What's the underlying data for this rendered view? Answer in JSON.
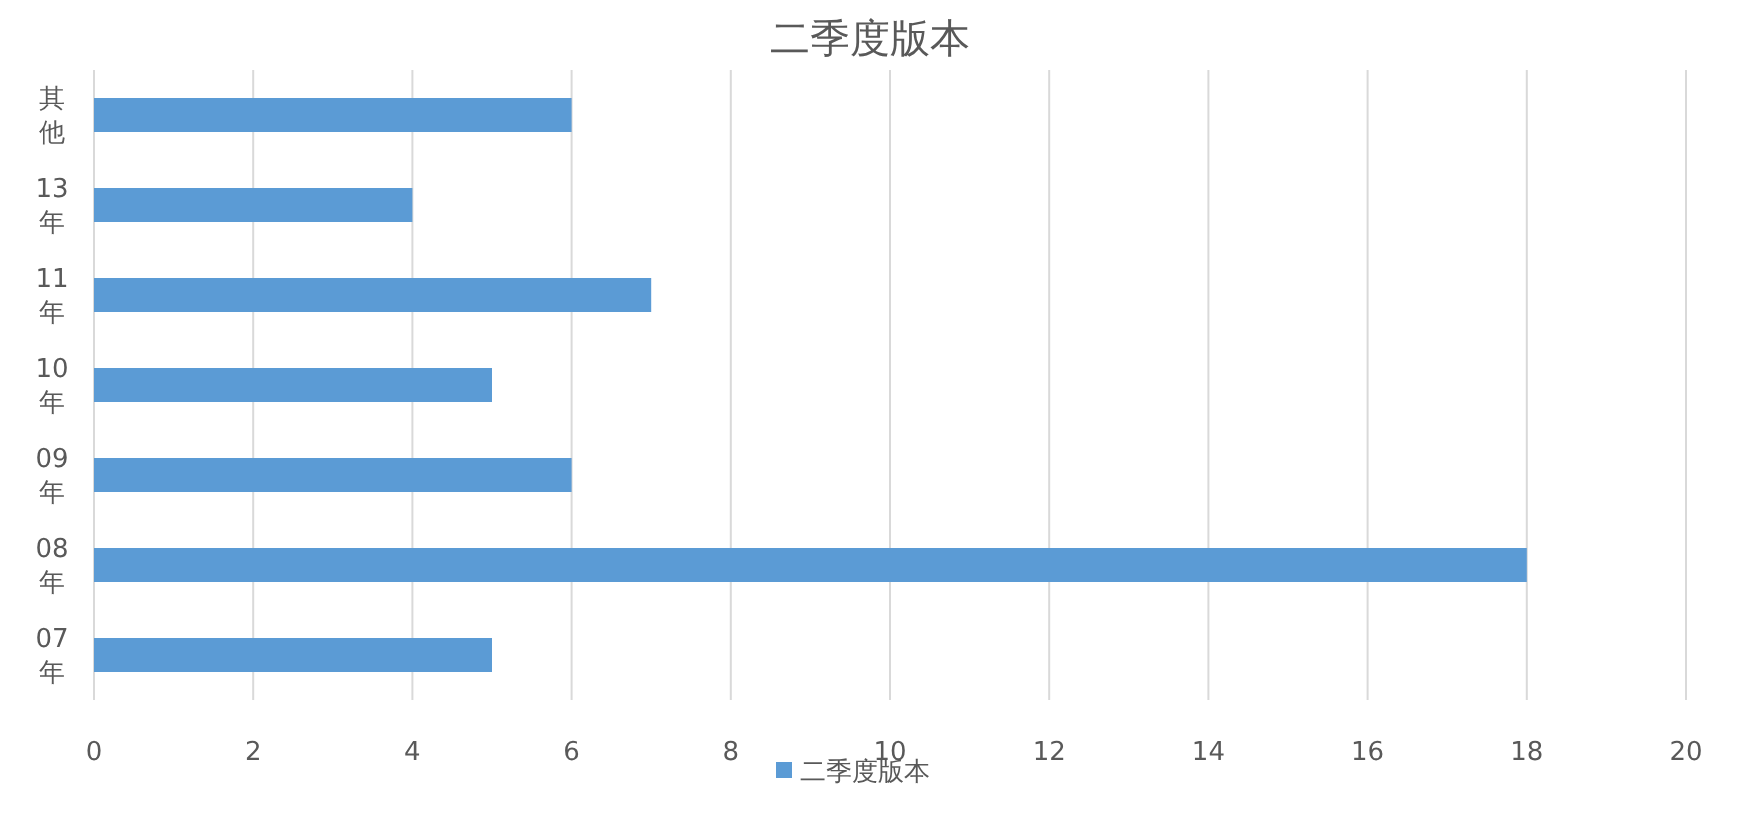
{
  "chart_data": {
    "type": "bar",
    "orientation": "horizontal",
    "title": "二季度版本",
    "categories": [
      "其他",
      "13年",
      "11年",
      "10年",
      "09年",
      "08年",
      "07年"
    ],
    "series": [
      {
        "name": "二季度版本",
        "color": "#5b9bd5",
        "values": [
          6,
          4,
          7,
          5,
          6,
          18,
          5
        ]
      }
    ],
    "xlim": [
      0,
      20
    ],
    "xticks": [
      0,
      2,
      4,
      6,
      8,
      10,
      12,
      14,
      16,
      18,
      20
    ],
    "grid": "x",
    "legend": "bottom"
  }
}
